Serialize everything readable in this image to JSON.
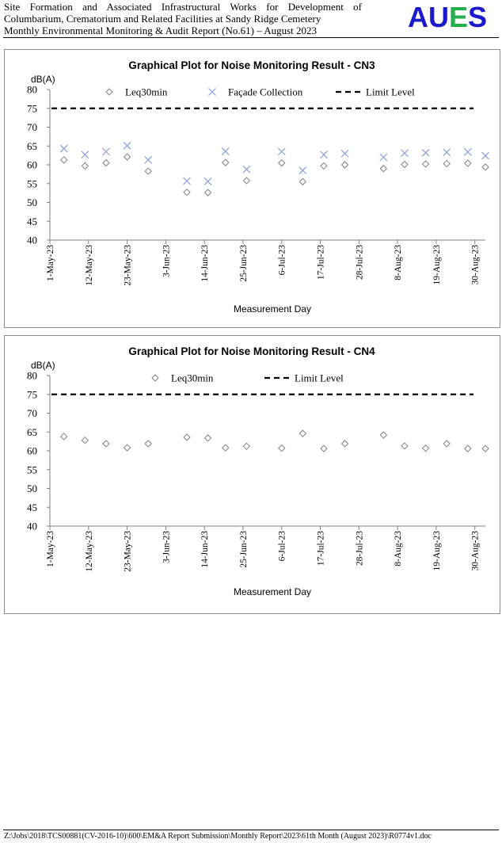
{
  "header": {
    "line1": "Site Formation and Associated Infrastructural Works for Development of",
    "line2": "Columbarium, Crematorium and Related Facilities at Sandy Ridge Cemetery",
    "line3": "Monthly Environmental Monitoring & Audit Report (No.61) – August 2023",
    "logo_text": "AUES",
    "logo_colors": {
      "primary": "#1a1acc",
      "secondary": "#22b04a"
    }
  },
  "footer": {
    "path": "Z:\\Jobs\\2018\\TCS00881(CV-2016-10)\\600\\EM&A Report Submission\\Monthly Report\\2023\\61th Month (August 2023)\\R0774v1.doc"
  },
  "chart_data": [
    {
      "type": "scatter",
      "title": "Graphical Plot for Noise Monitoring Result - CN3",
      "xlabel": "Measurement Day",
      "ylabel": "dB(A)",
      "ylim": [
        40,
        80
      ],
      "yticks": [
        40,
        45,
        50,
        55,
        60,
        65,
        70,
        75,
        80
      ],
      "xlim": [
        "2023-05-01",
        "2023-09-02"
      ],
      "xticks": [
        "2023-05-01",
        "2023-05-12",
        "2023-05-23",
        "2023-06-03",
        "2023-06-14",
        "2023-06-25",
        "2023-07-06",
        "2023-07-17",
        "2023-07-28",
        "2023-08-08",
        "2023-08-19",
        "2023-08-30"
      ],
      "xtick_labels": [
        "1-May-23",
        "12-May-23",
        "23-May-23",
        "3-Jun-23",
        "14-Jun-23",
        "25-Jun-23",
        "6-Jul-23",
        "17-Jul-23",
        "28-Jul-23",
        "8-Aug-23",
        "19-Aug-23",
        "30-Aug-23"
      ],
      "grid": false,
      "legend_position": "top",
      "series": [
        {
          "name": "Leq30min",
          "marker": "diamond",
          "color": "#808080",
          "x": [
            "2023-05-05",
            "2023-05-11",
            "2023-05-17",
            "2023-05-23",
            "2023-05-29",
            "2023-06-09",
            "2023-06-15",
            "2023-06-20",
            "2023-06-26",
            "2023-07-06",
            "2023-07-12",
            "2023-07-18",
            "2023-07-24",
            "2023-08-04",
            "2023-08-10",
            "2023-08-16",
            "2023-08-22",
            "2023-08-28",
            "2023-09-02"
          ],
          "y": [
            61.3,
            59.7,
            60.5,
            62.1,
            58.3,
            52.7,
            52.6,
            60.6,
            55.8,
            60.5,
            55.5,
            59.7,
            60.0,
            59.0,
            60.1,
            60.2,
            60.3,
            60.4,
            59.4
          ]
        },
        {
          "name": "Façade Collection",
          "marker": "x",
          "color": "#8c9ed8",
          "x": [
            "2023-05-05",
            "2023-05-11",
            "2023-05-17",
            "2023-05-23",
            "2023-05-29",
            "2023-06-09",
            "2023-06-15",
            "2023-06-20",
            "2023-06-26",
            "2023-07-06",
            "2023-07-12",
            "2023-07-18",
            "2023-07-24",
            "2023-08-04",
            "2023-08-10",
            "2023-08-16",
            "2023-08-22",
            "2023-08-28",
            "2023-09-02"
          ],
          "y": [
            64.3,
            62.7,
            63.5,
            65.1,
            61.3,
            55.7,
            55.6,
            63.6,
            58.8,
            63.5,
            58.5,
            62.7,
            63.0,
            62.0,
            63.1,
            63.2,
            63.3,
            63.4,
            62.4
          ]
        },
        {
          "name": "Limit Level",
          "line": "dashed",
          "color": "#000000",
          "y": 75
        }
      ]
    },
    {
      "type": "scatter",
      "title": "Graphical Plot for Noise Monitoring Result - CN4",
      "xlabel": "Measurement Day",
      "ylabel": "dB(A)",
      "ylim": [
        40,
        80
      ],
      "yticks": [
        40,
        45,
        50,
        55,
        60,
        65,
        70,
        75,
        80
      ],
      "xlim": [
        "2023-05-01",
        "2023-09-02"
      ],
      "xticks": [
        "2023-05-01",
        "2023-05-12",
        "2023-05-23",
        "2023-06-03",
        "2023-06-14",
        "2023-06-25",
        "2023-07-06",
        "2023-07-17",
        "2023-07-28",
        "2023-08-08",
        "2023-08-19",
        "2023-08-30"
      ],
      "xtick_labels": [
        "1-May-23",
        "12-May-23",
        "23-May-23",
        "3-Jun-23",
        "14-Jun-23",
        "25-Jun-23",
        "6-Jul-23",
        "17-Jul-23",
        "28-Jul-23",
        "8-Aug-23",
        "19-Aug-23",
        "30-Aug-23"
      ],
      "grid": false,
      "legend_position": "top",
      "series": [
        {
          "name": "Leq30min",
          "marker": "diamond",
          "color": "#808080",
          "x": [
            "2023-05-05",
            "2023-05-11",
            "2023-05-17",
            "2023-05-23",
            "2023-05-29",
            "2023-06-09",
            "2023-06-15",
            "2023-06-20",
            "2023-06-26",
            "2023-07-06",
            "2023-07-12",
            "2023-07-18",
            "2023-07-24",
            "2023-08-04",
            "2023-08-10",
            "2023-08-16",
            "2023-08-22",
            "2023-08-28",
            "2023-09-02"
          ],
          "y": [
            63.8,
            62.8,
            61.9,
            60.8,
            61.9,
            63.6,
            63.4,
            60.8,
            61.2,
            60.7,
            64.6,
            60.6,
            61.9,
            64.2,
            61.3,
            60.7,
            61.9,
            60.6,
            60.6
          ]
        },
        {
          "name": "Limit Level",
          "line": "dashed",
          "color": "#000000",
          "y": 75
        }
      ]
    }
  ]
}
